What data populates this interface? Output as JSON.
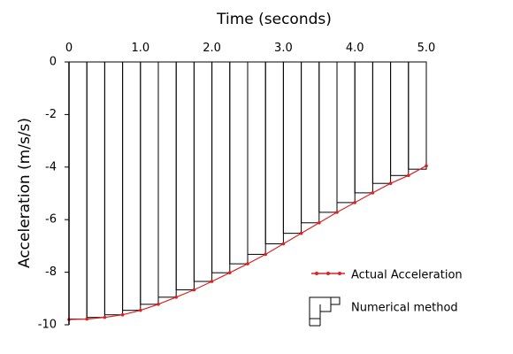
{
  "chart_data": {
    "type": "line",
    "title": "Time (seconds)",
    "xlabel": "Time (seconds)",
    "ylabel": "Acceleration (m/s/s)",
    "x_ticks": [
      "0",
      "1.0",
      "2.0",
      "3.0",
      "4.0",
      "5.0"
    ],
    "y_ticks": [
      "0",
      "-2",
      "-4",
      "-6",
      "-8",
      "-10"
    ],
    "xlim": [
      0,
      5
    ],
    "ylim": [
      -10,
      0
    ],
    "grid": false,
    "legend_position": "bottom-right",
    "series": [
      {
        "name": "Actual Acceleration",
        "style": "line-with-dots",
        "color": "#e02020",
        "x": [
          0,
          0.25,
          0.5,
          0.75,
          1.0,
          1.25,
          1.5,
          1.75,
          2.0,
          2.25,
          2.5,
          2.75,
          3.0,
          3.25,
          3.5,
          3.75,
          4.0,
          4.25,
          4.5,
          4.75,
          5.0
        ],
        "values": [
          -9.8,
          -9.78,
          -9.72,
          -9.62,
          -9.45,
          -9.22,
          -8.95,
          -8.67,
          -8.35,
          -8.02,
          -7.68,
          -7.32,
          -6.92,
          -6.52,
          -6.12,
          -5.72,
          -5.35,
          -4.98,
          -4.62,
          -4.32,
          -3.95
        ]
      },
      {
        "name": "Numerical method",
        "style": "step-rectangles",
        "color": "#000000",
        "x": [
          0,
          0.25,
          0.5,
          0.75,
          1.0,
          1.25,
          1.5,
          1.75,
          2.0,
          2.25,
          2.5,
          2.75,
          3.0,
          3.25,
          3.5,
          3.75,
          4.0,
          4.25,
          4.5,
          4.75
        ],
        "values": [
          -9.78,
          -9.72,
          -9.62,
          -9.45,
          -9.22,
          -8.95,
          -8.67,
          -8.35,
          -8.02,
          -7.68,
          -7.32,
          -6.92,
          -6.52,
          -6.12,
          -5.72,
          -5.35,
          -4.98,
          -4.62,
          -4.32,
          -4.08
        ]
      }
    ]
  },
  "legend": {
    "actual_label": "Actual Acceleration",
    "numerical_label": "Numerical method"
  }
}
